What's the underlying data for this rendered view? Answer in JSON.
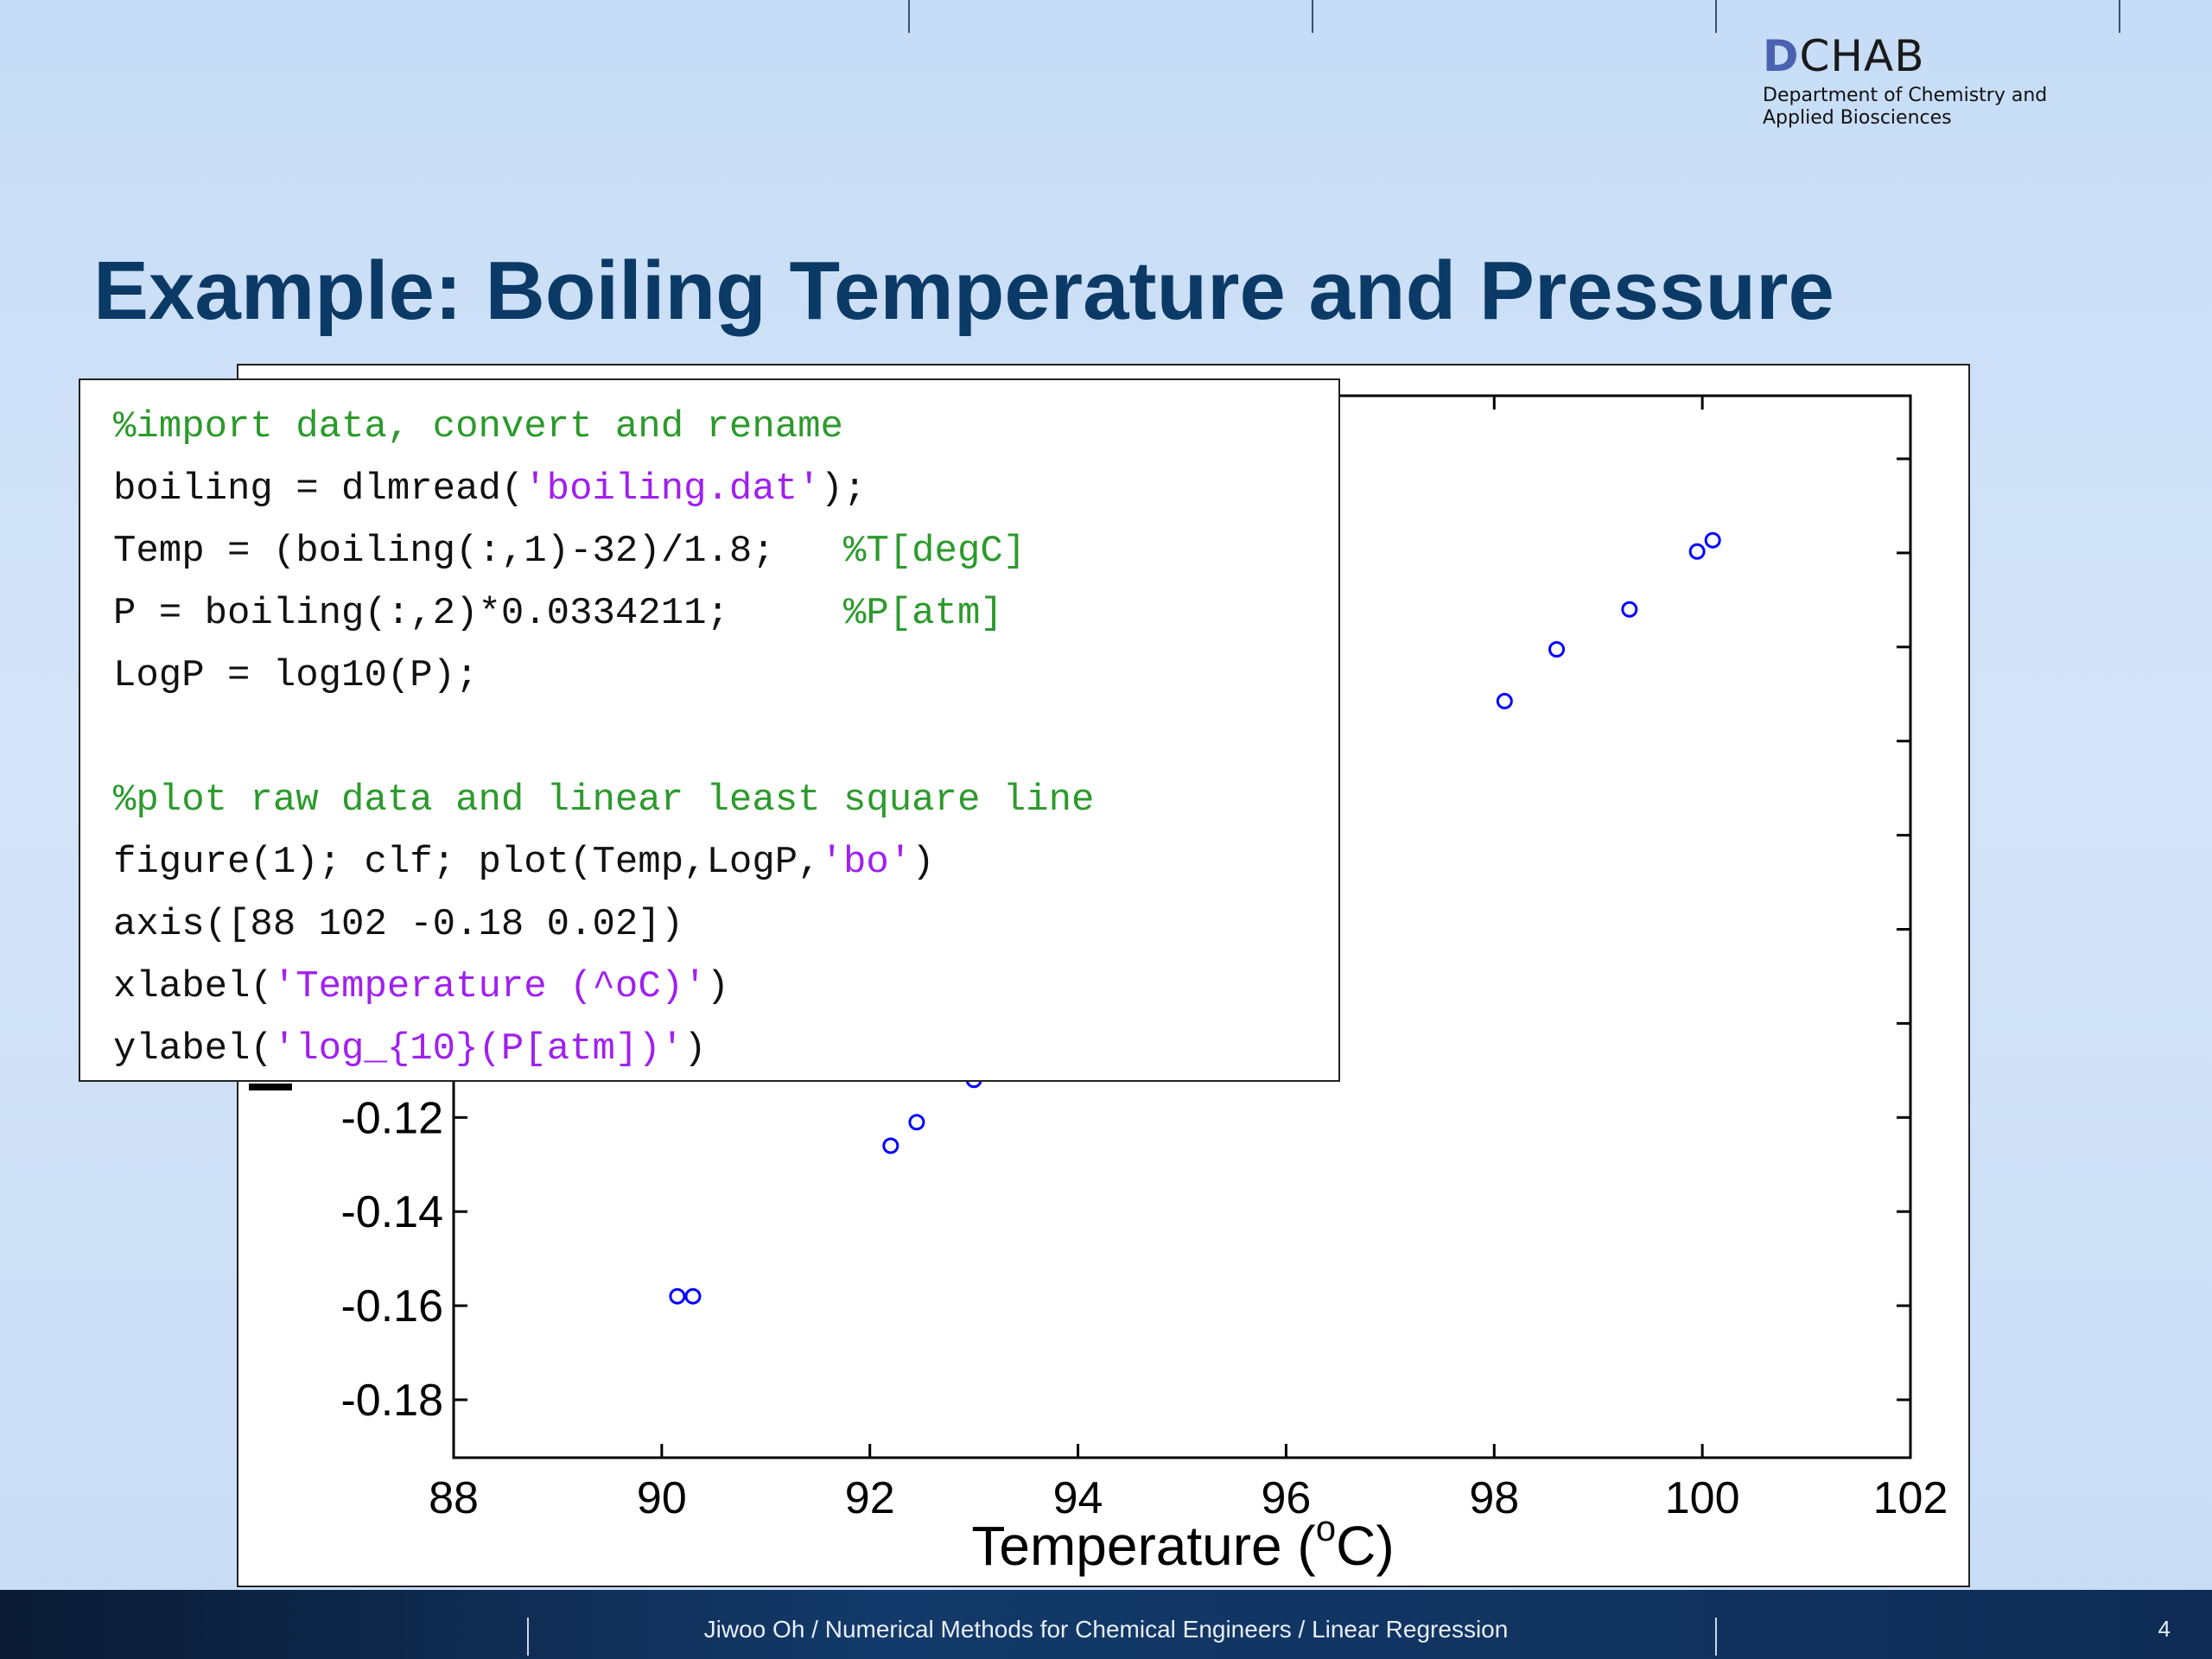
{
  "header": {
    "logo_letter": "D",
    "logo_text": "CHAB",
    "logo_sub_line1": "Department of Chemistry and",
    "logo_sub_line2": "Applied Biosciences"
  },
  "slide": {
    "title": "Example: Boiling Temperature and Pressure"
  },
  "code": {
    "lines": [
      [
        {
          "t": "%import data, convert and rename",
          "k": "c"
        }
      ],
      [
        {
          "t": "boiling = dlmread(",
          "k": ""
        },
        {
          "t": "'boiling.dat'",
          "k": "s"
        },
        {
          "t": ");",
          "k": ""
        }
      ],
      [
        {
          "t": "Temp = (boiling(:,1)-32)/1.8;   ",
          "k": ""
        },
        {
          "t": "%T[degC]",
          "k": "c"
        }
      ],
      [
        {
          "t": "P = boiling(:,2)*0.0334211;     ",
          "k": ""
        },
        {
          "t": "%P[atm]",
          "k": "c"
        }
      ],
      [
        {
          "t": "LogP = log10(P);",
          "k": ""
        }
      ],
      [
        {
          "t": "",
          "k": ""
        }
      ],
      [
        {
          "t": "%plot raw data and linear least square line",
          "k": "c"
        }
      ],
      [
        {
          "t": "figure(1); clf; plot(Temp,LogP,",
          "k": ""
        },
        {
          "t": "'bo'",
          "k": "s"
        },
        {
          "t": ")",
          "k": ""
        }
      ],
      [
        {
          "t": "axis([88 102 -0.18 0.02])",
          "k": ""
        }
      ],
      [
        {
          "t": "xlabel(",
          "k": ""
        },
        {
          "t": "'Temperature (^oC)'",
          "k": "s"
        },
        {
          "t": ")",
          "k": ""
        }
      ],
      [
        {
          "t": "ylabel(",
          "k": ""
        },
        {
          "t": "'log_{10}(P[atm])'",
          "k": "s"
        },
        {
          "t": ")",
          "k": ""
        }
      ]
    ]
  },
  "chart_data": {
    "type": "scatter",
    "xlabel": "Temperature (",
    "xlabel_sup": "o",
    "xlabel_end": "C)",
    "xlim": [
      88,
      102
    ],
    "ylim": [
      -0.18,
      0.02
    ],
    "x_ticks": [
      "88",
      "90",
      "92",
      "94",
      "96",
      "98",
      "100",
      "102"
    ],
    "y_ticks": [
      "-0.12",
      "-0.14",
      "-0.16",
      "-0.18"
    ],
    "marker_color": "#0000ff",
    "points": [
      {
        "x": 90.15,
        "y": -0.158
      },
      {
        "x": 90.3,
        "y": -0.158
      },
      {
        "x": 92.2,
        "y": -0.126
      },
      {
        "x": 92.45,
        "y": -0.121
      },
      {
        "x": 93.0,
        "y": -0.112
      },
      {
        "x": 98.1,
        "y": -0.0315
      },
      {
        "x": 98.6,
        "y": -0.0205
      },
      {
        "x": 99.3,
        "y": -0.012
      },
      {
        "x": 99.95,
        "y": 0.0003
      },
      {
        "x": 100.1,
        "y": 0.0027
      }
    ]
  },
  "footer": {
    "text": "Jiwoo Oh / Numerical Methods for Chemical Engineers / Linear Regression",
    "page": "4"
  }
}
